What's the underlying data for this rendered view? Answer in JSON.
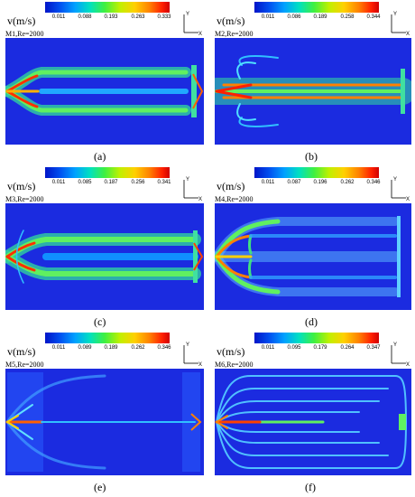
{
  "colors": {
    "field_bg": "#1b2be0",
    "colormap": [
      "#0014c8",
      "#0050f0",
      "#00a0ff",
      "#00e0c0",
      "#40f040",
      "#c0f000",
      "#ffd000",
      "#ff8000",
      "#ff2000",
      "#d00000"
    ]
  },
  "legend_unit": "v(m/s)",
  "axis_y": "Y",
  "axis_x": "X",
  "panels": [
    {
      "case": "M1,Re=2000",
      "caption": "(a)",
      "ticks": [
        "0.011",
        "0.088",
        "0.193",
        "0.263",
        "0.333"
      ]
    },
    {
      "case": "M2,Re=2000",
      "caption": "(b)",
      "ticks": [
        "0.011",
        "0.086",
        "0.189",
        "0.258",
        "0.344"
      ]
    },
    {
      "case": "M3,Re=2000",
      "caption": "(c)",
      "ticks": [
        "0.011",
        "0.085",
        "0.187",
        "0.256",
        "0.341"
      ]
    },
    {
      "case": "M4,Re=2000",
      "caption": "(d)",
      "ticks": [
        "0.011",
        "0.087",
        "0.196",
        "0.262",
        "0.346"
      ]
    },
    {
      "case": "M5,Re=2000",
      "caption": "(e)",
      "ticks": [
        "0.011",
        "0.089",
        "0.189",
        "0.262",
        "0.346"
      ]
    },
    {
      "case": "M6,Re=2000",
      "caption": "(f)",
      "ticks": [
        "0.011",
        "0.095",
        "0.179",
        "0.264",
        "0.347"
      ]
    }
  ]
}
